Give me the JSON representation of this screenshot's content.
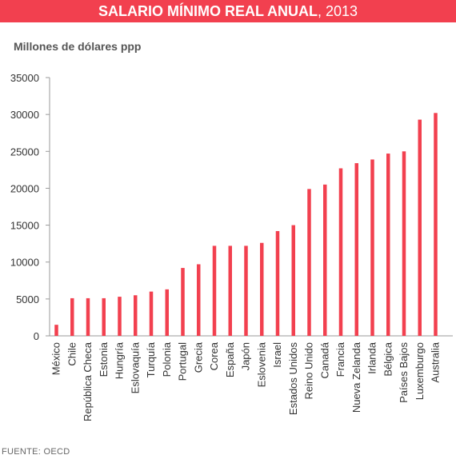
{
  "header": {
    "title_bold": "SALARIO MÍNIMO REAL ANUAL",
    "title_rest": ", 2013"
  },
  "colors": {
    "accent": "#f2404f",
    "bar": "#f2404f",
    "axis": "#9a9a9a"
  },
  "chart_data": {
    "type": "bar",
    "title": "SALARIO MÍNIMO REAL ANUAL, 2013",
    "ylabel": "Millones de dólares ppp",
    "xlabel": "",
    "ylim": [
      0,
      35000
    ],
    "yticks": [
      0,
      5000,
      10000,
      15000,
      20000,
      25000,
      30000,
      35000
    ],
    "grid": false,
    "categories": [
      "México",
      "Chile",
      "República Checa",
      "Estonia",
      "Hungría",
      "Eslovaquía",
      "Turquía",
      "Polonia",
      "Portugal",
      "Grecia",
      "Corea",
      "España",
      "Japón",
      "Eslovenia",
      "Israel",
      "Estados Unidos",
      "Reino Unido",
      "Canadá",
      "Francia",
      "Nueva Zelanda",
      "Irlanda",
      "Bélgica",
      "Países Bajos",
      "Luxemburgo",
      "Australia"
    ],
    "values": [
      1500,
      5100,
      5100,
      5100,
      5300,
      5500,
      6000,
      6300,
      9200,
      9700,
      12200,
      12200,
      12200,
      12600,
      14200,
      15000,
      19900,
      20500,
      22700,
      23400,
      23900,
      24700,
      25000,
      29300,
      30200
    ]
  },
  "source": "FUENTE: OECD"
}
